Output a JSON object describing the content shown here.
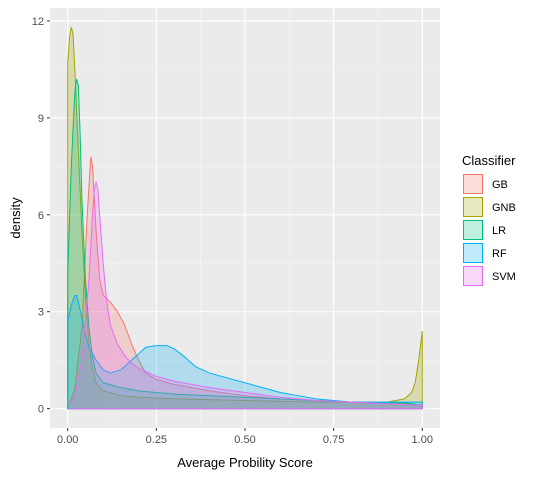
{
  "chart_data": {
    "type": "area",
    "xlabel": "Average Probility Score",
    "ylabel": "density",
    "xlim": [
      -0.05,
      1.05
    ],
    "ylim": [
      -0.6,
      12.4
    ],
    "x_ticks": [
      {
        "value": 0.0,
        "label": "0.00"
      },
      {
        "value": 0.25,
        "label": "0.25"
      },
      {
        "value": 0.5,
        "label": "0.50"
      },
      {
        "value": 0.75,
        "label": "0.75"
      },
      {
        "value": 1.0,
        "label": "1.00"
      }
    ],
    "y_ticks": [
      {
        "value": 0,
        "label": "0"
      },
      {
        "value": 3,
        "label": "3"
      },
      {
        "value": 6,
        "label": "6"
      },
      {
        "value": 9,
        "label": "9"
      },
      {
        "value": 12,
        "label": "12"
      }
    ],
    "grid": true,
    "legend": {
      "title": "Classifier",
      "position": "right"
    },
    "series": [
      {
        "name": "GB",
        "color": "#F8766D",
        "points": [
          [
            0.005,
            0.15
          ],
          [
            0.02,
            0.6
          ],
          [
            0.04,
            2.5
          ],
          [
            0.055,
            6.0
          ],
          [
            0.065,
            7.8
          ],
          [
            0.07,
            7.5
          ],
          [
            0.08,
            5.5
          ],
          [
            0.09,
            4.0
          ],
          [
            0.1,
            3.5
          ],
          [
            0.12,
            3.3
          ],
          [
            0.14,
            3.0
          ],
          [
            0.16,
            2.6
          ],
          [
            0.18,
            2.0
          ],
          [
            0.2,
            1.5
          ],
          [
            0.22,
            1.1
          ],
          [
            0.25,
            0.9
          ],
          [
            0.3,
            0.75
          ],
          [
            0.4,
            0.55
          ],
          [
            0.5,
            0.4
          ],
          [
            0.6,
            0.3
          ],
          [
            0.7,
            0.25
          ],
          [
            0.8,
            0.2
          ],
          [
            0.9,
            0.15
          ],
          [
            0.95,
            0.15
          ],
          [
            1.0,
            0.1
          ]
        ]
      },
      {
        "name": "GNB",
        "color": "#A3A500",
        "points": [
          [
            0.0,
            10.7
          ],
          [
            0.005,
            11.5
          ],
          [
            0.01,
            11.8
          ],
          [
            0.015,
            11.6
          ],
          [
            0.02,
            10.5
          ],
          [
            0.03,
            8.0
          ],
          [
            0.04,
            5.5
          ],
          [
            0.05,
            3.5
          ],
          [
            0.06,
            2.0
          ],
          [
            0.07,
            1.2
          ],
          [
            0.08,
            0.8
          ],
          [
            0.1,
            0.55
          ],
          [
            0.15,
            0.4
          ],
          [
            0.2,
            0.35
          ],
          [
            0.3,
            0.3
          ],
          [
            0.5,
            0.25
          ],
          [
            0.7,
            0.2
          ],
          [
            0.8,
            0.2
          ],
          [
            0.9,
            0.2
          ],
          [
            0.95,
            0.3
          ],
          [
            0.97,
            0.5
          ],
          [
            0.98,
            0.8
          ],
          [
            0.99,
            1.5
          ],
          [
            1.0,
            2.4
          ]
        ]
      },
      {
        "name": "LR",
        "color": "#00BF7D",
        "points": [
          [
            0.0,
            4.2
          ],
          [
            0.01,
            7.5
          ],
          [
            0.02,
            9.8
          ],
          [
            0.025,
            10.2
          ],
          [
            0.03,
            10.0
          ],
          [
            0.035,
            8.5
          ],
          [
            0.04,
            6.5
          ],
          [
            0.05,
            4.0
          ],
          [
            0.06,
            2.5
          ],
          [
            0.07,
            1.6
          ],
          [
            0.08,
            1.1
          ],
          [
            0.1,
            0.8
          ],
          [
            0.15,
            0.65
          ],
          [
            0.2,
            0.55
          ],
          [
            0.3,
            0.45
          ],
          [
            0.4,
            0.4
          ],
          [
            0.5,
            0.35
          ],
          [
            0.6,
            0.3
          ],
          [
            0.7,
            0.25
          ],
          [
            0.8,
            0.2
          ],
          [
            0.9,
            0.18
          ],
          [
            0.95,
            0.18
          ],
          [
            1.0,
            0.1
          ]
        ]
      },
      {
        "name": "RF",
        "color": "#00B0F6",
        "points": [
          [
            0.0,
            2.7
          ],
          [
            0.01,
            3.2
          ],
          [
            0.02,
            3.5
          ],
          [
            0.025,
            3.5
          ],
          [
            0.03,
            3.3
          ],
          [
            0.04,
            2.8
          ],
          [
            0.05,
            2.3
          ],
          [
            0.06,
            1.9
          ],
          [
            0.08,
            1.5
          ],
          [
            0.1,
            1.2
          ],
          [
            0.12,
            1.1
          ],
          [
            0.15,
            1.2
          ],
          [
            0.18,
            1.5
          ],
          [
            0.2,
            1.7
          ],
          [
            0.22,
            1.9
          ],
          [
            0.25,
            1.95
          ],
          [
            0.28,
            1.95
          ],
          [
            0.3,
            1.85
          ],
          [
            0.33,
            1.6
          ],
          [
            0.36,
            1.3
          ],
          [
            0.4,
            1.1
          ],
          [
            0.45,
            0.95
          ],
          [
            0.5,
            0.8
          ],
          [
            0.55,
            0.65
          ],
          [
            0.6,
            0.5
          ],
          [
            0.65,
            0.4
          ],
          [
            0.7,
            0.3
          ],
          [
            0.75,
            0.25
          ],
          [
            0.8,
            0.2
          ],
          [
            0.85,
            0.2
          ],
          [
            0.9,
            0.2
          ],
          [
            0.95,
            0.2
          ],
          [
            1.0,
            0.2
          ]
        ]
      },
      {
        "name": "SVM",
        "color": "#E76BF3",
        "points": [
          [
            0.005,
            0.1
          ],
          [
            0.02,
            0.4
          ],
          [
            0.04,
            1.5
          ],
          [
            0.06,
            4.0
          ],
          [
            0.07,
            6.0
          ],
          [
            0.075,
            6.8
          ],
          [
            0.08,
            7.0
          ],
          [
            0.085,
            6.8
          ],
          [
            0.09,
            6.0
          ],
          [
            0.1,
            4.5
          ],
          [
            0.11,
            3.3
          ],
          [
            0.12,
            2.6
          ],
          [
            0.14,
            2.0
          ],
          [
            0.16,
            1.65
          ],
          [
            0.18,
            1.4
          ],
          [
            0.2,
            1.25
          ],
          [
            0.25,
            1.0
          ],
          [
            0.3,
            0.85
          ],
          [
            0.4,
            0.65
          ],
          [
            0.5,
            0.5
          ],
          [
            0.6,
            0.35
          ],
          [
            0.7,
            0.25
          ],
          [
            0.8,
            0.2
          ],
          [
            0.9,
            0.15
          ],
          [
            0.95,
            0.12
          ],
          [
            1.0,
            0.1
          ]
        ]
      }
    ]
  }
}
